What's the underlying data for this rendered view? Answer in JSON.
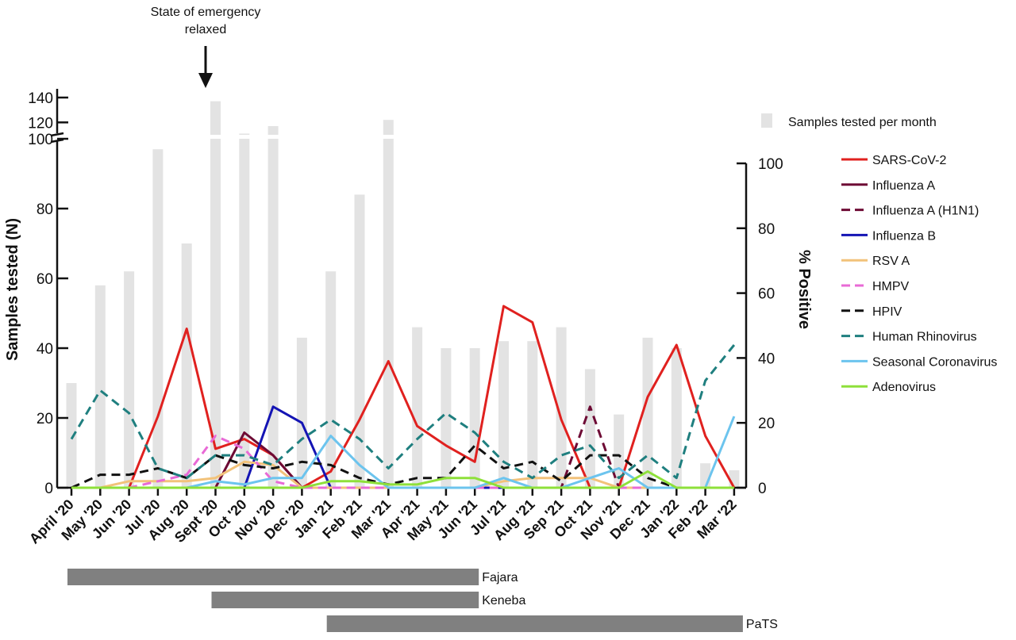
{
  "annotation": {
    "line1": "State of emergency",
    "line2": "relaxed",
    "at_category": "Sept '20"
  },
  "chart_data": {
    "type": "bar",
    "categories": [
      "April '20",
      "May '20",
      "Jun '20",
      "Jul '20",
      "Aug '20",
      "Sept '20",
      "Oct '20",
      "Nov '20",
      "Dec '20",
      "Jan '21",
      "Feb '21",
      "Mar '21",
      "Apr '21",
      "May '21",
      "Jun '21",
      "Jul '21",
      "Aug '21",
      "Sep '21",
      "Oct '21",
      "Nov '21",
      "Dec '21",
      "Jan '22",
      "Feb '22",
      "Mar '22"
    ],
    "ylabel": "Samples tested (N)",
    "y2label": "% Positive",
    "ylim": [
      0,
      140
    ],
    "y_break": [
      100,
      110
    ],
    "y_ticks": [
      0,
      20,
      40,
      60,
      80,
      100,
      120,
      140
    ],
    "y2lim": [
      0,
      100
    ],
    "y2_ticks": [
      0,
      20,
      40,
      60,
      80,
      100
    ],
    "bar_series": {
      "name": "Samples tested per month",
      "color": "#e3e3e3",
      "values": [
        30,
        58,
        62,
        97,
        70,
        137,
        111,
        117,
        43,
        62,
        84,
        122,
        46,
        40,
        40,
        42,
        42,
        46,
        34,
        21,
        43,
        40,
        7,
        5
      ]
    },
    "series": [
      {
        "name": "SARS-CoV-2",
        "color": "#e0211f",
        "dash": "solid",
        "values": [
          0,
          0,
          0,
          22,
          49,
          12,
          15,
          10,
          0,
          5,
          21,
          39,
          19,
          13,
          8,
          56,
          51,
          21,
          0,
          0,
          28,
          44,
          16,
          0
        ]
      },
      {
        "name": "Influenza A",
        "color": "#6e0b35",
        "dash": "solid",
        "values": [
          0,
          0,
          0,
          0,
          0,
          0,
          17,
          10,
          0,
          0,
          0,
          0,
          0,
          0,
          0,
          0,
          0,
          0,
          0,
          0,
          0,
          0,
          0,
          0
        ]
      },
      {
        "name": "Influenza A (H1N1)",
        "color": "#6e0b35",
        "dash": "dashed",
        "values": [
          0,
          0,
          0,
          0,
          0,
          0,
          0,
          0,
          0,
          0,
          0,
          0,
          0,
          0,
          0,
          0,
          0,
          0,
          25,
          0,
          0,
          0,
          0,
          0
        ]
      },
      {
        "name": "Influenza B",
        "color": "#1414b4",
        "dash": "solid",
        "values": [
          0,
          0,
          0,
          0,
          0,
          0,
          0,
          25,
          20,
          0,
          0,
          0,
          0,
          0,
          0,
          0,
          0,
          0,
          0,
          0,
          0,
          0,
          0,
          0
        ]
      },
      {
        "name": "RSV A",
        "color": "#f2c27a",
        "dash": "solid",
        "values": [
          0,
          0,
          2,
          2,
          2,
          3,
          8,
          7,
          0,
          0,
          0,
          0,
          0,
          0,
          0,
          2,
          3,
          3,
          3,
          0,
          0,
          0,
          0,
          0
        ]
      },
      {
        "name": "HMPV",
        "color": "#e86ad6",
        "dash": "dashed",
        "values": [
          0,
          0,
          0,
          2,
          4,
          16,
          12,
          2,
          0,
          0,
          0,
          0,
          0,
          0,
          0,
          0,
          0,
          0,
          0,
          0,
          0,
          0,
          0,
          0
        ]
      },
      {
        "name": "HPIV",
        "color": "#111111",
        "dash": "dashed",
        "values": [
          0,
          4,
          4,
          6,
          3,
          10,
          7,
          6,
          8,
          7,
          3,
          1,
          3,
          3,
          13,
          6,
          8,
          2,
          10,
          10,
          3,
          0,
          0,
          0
        ]
      },
      {
        "name": "Human Rhinovirus",
        "color": "#1f7f7f",
        "dash": "dashed",
        "values": [
          15,
          30,
          23,
          6,
          3,
          10,
          10,
          7,
          15,
          21,
          15,
          6,
          15,
          23,
          17,
          8,
          3,
          10,
          13,
          3,
          10,
          3,
          33,
          44
        ]
      },
      {
        "name": "Seasonal Coronavirus",
        "color": "#6cc4ee",
        "dash": "solid",
        "values": [
          0,
          0,
          0,
          0,
          0,
          2,
          1,
          3,
          3,
          16,
          7,
          0,
          0,
          0,
          0,
          3,
          0,
          0,
          3,
          6,
          0,
          0,
          0,
          22
        ]
      },
      {
        "name": "Adenovirus",
        "color": "#8ee03a",
        "dash": "solid",
        "values": [
          0,
          0,
          0,
          0,
          0,
          0,
          0,
          0,
          0,
          2,
          2,
          1,
          1,
          3,
          3,
          0,
          0,
          0,
          0,
          0,
          5,
          0,
          0,
          0
        ]
      }
    ],
    "sites": [
      {
        "name": "Fajara",
        "start": "April '20",
        "end": "Jun '21"
      },
      {
        "name": "Keneba",
        "start": "Sept '20",
        "end": "Jun '21"
      },
      {
        "name": "PaTS",
        "start": "Jan '21",
        "end": "Mar '22"
      }
    ]
  }
}
